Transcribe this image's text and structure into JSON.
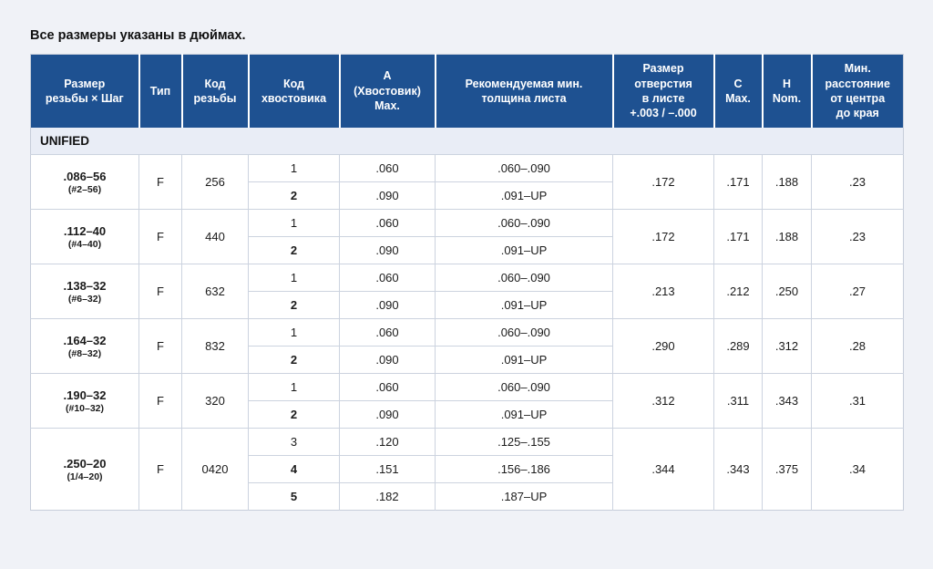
{
  "page": {
    "title": "Все размеры указаны в дюймах."
  },
  "colors": {
    "page_background": "#f0f2f7",
    "header_background": "#1e5191",
    "header_text": "#ffffff",
    "section_background": "#e9edf6",
    "grid_border": "#ccd3df",
    "body_text": "#1b1b1b"
  },
  "table": {
    "section": "UNIFIED",
    "headers": [
      "Размер\nрезьбы × Шаг",
      "Тип",
      "Код\nрезьбы",
      "Код\nхвостовика",
      "А\n(Хвостовик)\nMax.",
      "Рекомендуемая мин.\nтолщина листа",
      "Размер\nотверстия\nв листе\n+.003 / –.000",
      "C\nMax.",
      "H\nNom.",
      "Мин.\nрасстояние\nот центра\nдо края"
    ],
    "rows": [
      {
        "size": ".086–56",
        "alt": "(#2–56)",
        "type": "F",
        "thread_code": "256",
        "shanks": [
          {
            "code": "1",
            "bold": false,
            "a_max": ".060",
            "thickness": ".060–.090"
          },
          {
            "code": "2",
            "bold": true,
            "a_max": ".090",
            "thickness": ".091–UP"
          }
        ],
        "hole_size": ".172",
        "c_max": ".171",
        "h_nom": ".188",
        "min_edge": ".23"
      },
      {
        "size": ".112–40",
        "alt": "(#4–40)",
        "type": "F",
        "thread_code": "440",
        "shanks": [
          {
            "code": "1",
            "bold": false,
            "a_max": ".060",
            "thickness": ".060–.090"
          },
          {
            "code": "2",
            "bold": true,
            "a_max": ".090",
            "thickness": ".091–UP"
          }
        ],
        "hole_size": ".172",
        "c_max": ".171",
        "h_nom": ".188",
        "min_edge": ".23"
      },
      {
        "size": ".138–32",
        "alt": "(#6–32)",
        "type": "F",
        "thread_code": "632",
        "shanks": [
          {
            "code": "1",
            "bold": false,
            "a_max": ".060",
            "thickness": ".060–.090"
          },
          {
            "code": "2",
            "bold": true,
            "a_max": ".090",
            "thickness": ".091–UP"
          }
        ],
        "hole_size": ".213",
        "c_max": ".212",
        "h_nom": ".250",
        "min_edge": ".27"
      },
      {
        "size": ".164–32",
        "alt": "(#8–32)",
        "type": "F",
        "thread_code": "832",
        "shanks": [
          {
            "code": "1",
            "bold": false,
            "a_max": ".060",
            "thickness": ".060–.090"
          },
          {
            "code": "2",
            "bold": true,
            "a_max": ".090",
            "thickness": ".091–UP"
          }
        ],
        "hole_size": ".290",
        "c_max": ".289",
        "h_nom": ".312",
        "min_edge": ".28"
      },
      {
        "size": ".190–32",
        "alt": "(#10–32)",
        "type": "F",
        "thread_code": "320",
        "shanks": [
          {
            "code": "1",
            "bold": false,
            "a_max": ".060",
            "thickness": ".060–.090"
          },
          {
            "code": "2",
            "bold": true,
            "a_max": ".090",
            "thickness": ".091–UP"
          }
        ],
        "hole_size": ".312",
        "c_max": ".311",
        "h_nom": ".343",
        "min_edge": ".31"
      },
      {
        "size": ".250–20",
        "alt": "(1/4–20)",
        "type": "F",
        "thread_code": "0420",
        "shanks": [
          {
            "code": "3",
            "bold": false,
            "a_max": ".120",
            "thickness": ".125–.155"
          },
          {
            "code": "4",
            "bold": true,
            "a_max": ".151",
            "thickness": ".156–.186"
          },
          {
            "code": "5",
            "bold": true,
            "a_max": ".182",
            "thickness": ".187–UP"
          }
        ],
        "hole_size": ".344",
        "c_max": ".343",
        "h_nom": ".375",
        "min_edge": ".34"
      }
    ]
  }
}
